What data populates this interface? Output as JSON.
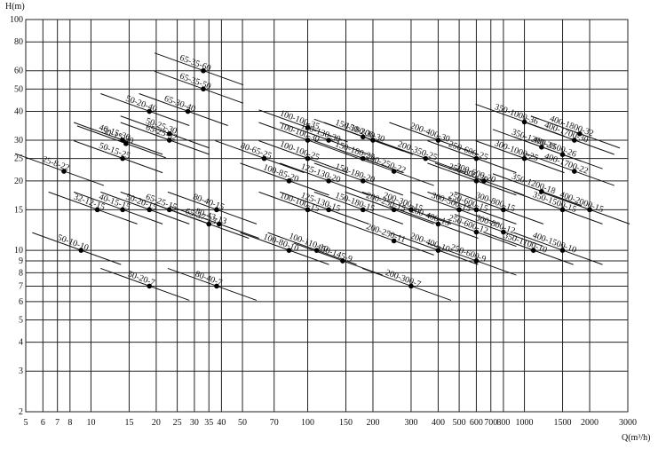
{
  "chart_data": {
    "type": "scatter",
    "ylabel": "H(m)",
    "xlabel": "Q(m³/h)",
    "xlim": [
      5,
      3000
    ],
    "ylim": [
      2,
      100
    ],
    "log": true,
    "grid": true,
    "xticks": [
      5,
      6,
      7,
      8,
      10,
      15,
      20,
      25,
      30,
      35,
      40,
      50,
      70,
      100,
      150,
      200,
      300,
      400,
      500,
      600,
      700,
      800,
      1000,
      1500,
      2000,
      3000
    ],
    "yticks": [
      2,
      3,
      4,
      5,
      6,
      7,
      8,
      9,
      10,
      15,
      20,
      25,
      30,
      40,
      50,
      60,
      80,
      100
    ],
    "points": [
      {
        "label": "25-8-22",
        "x": 7.5,
        "y": 22
      },
      {
        "label": "50-10-10",
        "x": 9,
        "y": 10
      },
      {
        "label": "32-12-15",
        "x": 10.7,
        "y": 15
      },
      {
        "label": "40-15-15",
        "x": 14,
        "y": 15
      },
      {
        "label": "50-15-25",
        "x": 14,
        "y": 25
      },
      {
        "label": "40-15-30",
        "x": 14,
        "y": 30
      },
      {
        "label": "50-15-30",
        "x": 14.5,
        "y": 29
      },
      {
        "label": "50-20-40",
        "x": 18.6,
        "y": 40
      },
      {
        "label": "50-20-15",
        "x": 18.6,
        "y": 15
      },
      {
        "label": "50-20-7",
        "x": 18.6,
        "y": 7
      },
      {
        "label": "65-25-15",
        "x": 23,
        "y": 15
      },
      {
        "label": "50-25-30",
        "x": 23,
        "y": 32
      },
      {
        "label": "65-25-32",
        "x": 23,
        "y": 30
      },
      {
        "label": "65-35-60",
        "x": 33,
        "y": 60
      },
      {
        "label": "65-35-50",
        "x": 33,
        "y": 50
      },
      {
        "label": "65-30-40",
        "x": 28,
        "y": 40
      },
      {
        "label": "80-40-15",
        "x": 38,
        "y": 15
      },
      {
        "label": "65-37-13",
        "x": 35,
        "y": 13
      },
      {
        "label": "80-43-13",
        "x": 39,
        "y": 13
      },
      {
        "label": "80-40-7",
        "x": 38,
        "y": 7
      },
      {
        "label": "80-65-25",
        "x": 63,
        "y": 25
      },
      {
        "label": "100-100-35",
        "x": 100,
        "y": 34
      },
      {
        "label": "100-100-30",
        "x": 100,
        "y": 30
      },
      {
        "label": "150-130-30",
        "x": 125,
        "y": 30
      },
      {
        "label": "150-180-30",
        "x": 180,
        "y": 31
      },
      {
        "label": "150-200-30",
        "x": 200,
        "y": 30
      },
      {
        "label": "100-100-25",
        "x": 100,
        "y": 25
      },
      {
        "label": "150-180-25",
        "x": 180,
        "y": 25
      },
      {
        "label": "200-250-22",
        "x": 250,
        "y": 22
      },
      {
        "label": "100-85-20",
        "x": 82,
        "y": 20
      },
      {
        "label": "125-130-20",
        "x": 125,
        "y": 20
      },
      {
        "label": "150-180-20",
        "x": 180,
        "y": 20
      },
      {
        "label": "200-250-15",
        "x": 250,
        "y": 15
      },
      {
        "label": "200-300-15",
        "x": 300,
        "y": 15
      },
      {
        "label": "100-100-15",
        "x": 100,
        "y": 15
      },
      {
        "label": "125-130-15",
        "x": 125,
        "y": 15
      },
      {
        "label": "150-180-15",
        "x": 180,
        "y": 15
      },
      {
        "label": "100-80-10",
        "x": 82,
        "y": 10
      },
      {
        "label": "100-110-10",
        "x": 110,
        "y": 10
      },
      {
        "label": "150-145-9",
        "x": 145,
        "y": 9
      },
      {
        "label": "200-250-11",
        "x": 250,
        "y": 11
      },
      {
        "label": "200-400-13",
        "x": 400,
        "y": 13
      },
      {
        "label": "200-400-10",
        "x": 400,
        "y": 10
      },
      {
        "label": "200-300-7",
        "x": 300,
        "y": 7
      },
      {
        "label": "200-350-25",
        "x": 350,
        "y": 25
      },
      {
        "label": "200-400-30",
        "x": 400,
        "y": 30
      },
      {
        "label": "250-600-25",
        "x": 600,
        "y": 25
      },
      {
        "label": "250-600-20",
        "x": 600,
        "y": 20
      },
      {
        "label": "300-600-20",
        "x": 650,
        "y": 20
      },
      {
        "label": "250-600-15",
        "x": 600,
        "y": 15
      },
      {
        "label": "300-500-15",
        "x": 500,
        "y": 15
      },
      {
        "label": "250-600-12",
        "x": 600,
        "y": 12
      },
      {
        "label": "250-600-9",
        "x": 600,
        "y": 9
      },
      {
        "label": "300-800-12",
        "x": 800,
        "y": 12
      },
      {
        "label": "300-800-15",
        "x": 800,
        "y": 15
      },
      {
        "label": "300-1000-25",
        "x": 1000,
        "y": 25
      },
      {
        "label": "350-1000-36",
        "x": 1000,
        "y": 36
      },
      {
        "label": "350-1200-28",
        "x": 1200,
        "y": 28
      },
      {
        "label": "350-1200-18",
        "x": 1200,
        "y": 18
      },
      {
        "label": "350-1100-10",
        "x": 1100,
        "y": 10
      },
      {
        "label": "400-1500-26",
        "x": 1500,
        "y": 26
      },
      {
        "label": "400-1700-30",
        "x": 1700,
        "y": 30
      },
      {
        "label": "400-1800-32",
        "x": 1800,
        "y": 32
      },
      {
        "label": "400-1700-22",
        "x": 1700,
        "y": 22
      },
      {
        "label": "400-2000-15",
        "x": 2000,
        "y": 15
      },
      {
        "label": "350-1500-15",
        "x": 1500,
        "y": 15
      },
      {
        "label": "400-1500-10",
        "x": 1500,
        "y": 10
      }
    ]
  }
}
